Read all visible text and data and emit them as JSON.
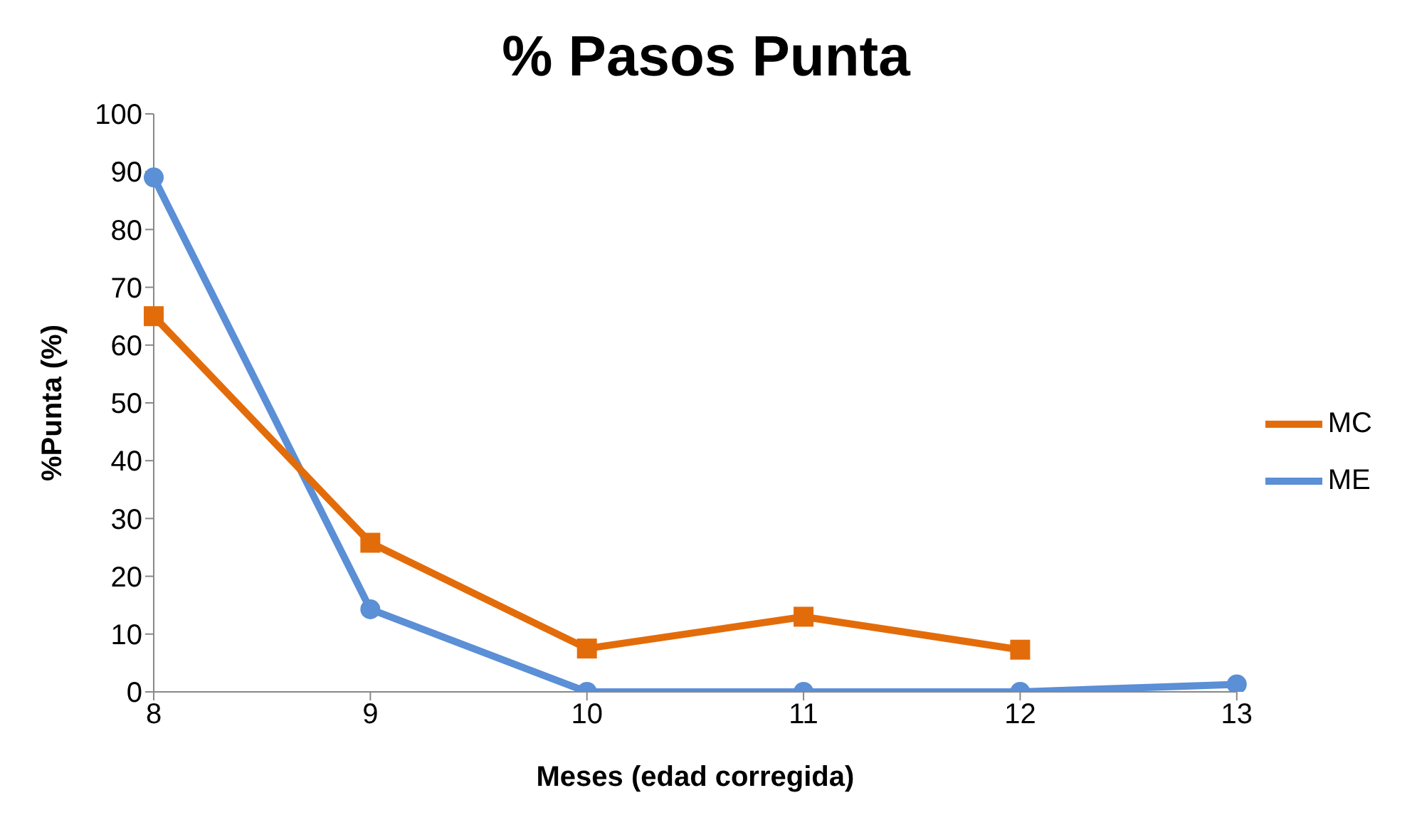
{
  "chart_data": {
    "type": "line",
    "title": "% Pasos Punta",
    "xlabel": "Meses (edad corregida)",
    "ylabel": "%Punta (%)",
    "categories": [
      "8",
      "9",
      "10",
      "11",
      "12",
      "13"
    ],
    "series": [
      {
        "name": "ME",
        "color": "#5b8fd6",
        "marker": "circle",
        "values": [
          89,
          14.3,
          0,
          0,
          0,
          1.3
        ]
      },
      {
        "name": "MC",
        "color": "#e36c0a",
        "marker": "square",
        "values": [
          65,
          25.8,
          7.5,
          13,
          7.3,
          null
        ]
      }
    ],
    "ylim": [
      0,
      100
    ],
    "yticks": [
      0,
      10,
      20,
      30,
      40,
      50,
      60,
      70,
      80,
      90,
      100
    ],
    "grid": false,
    "legend": "right"
  }
}
